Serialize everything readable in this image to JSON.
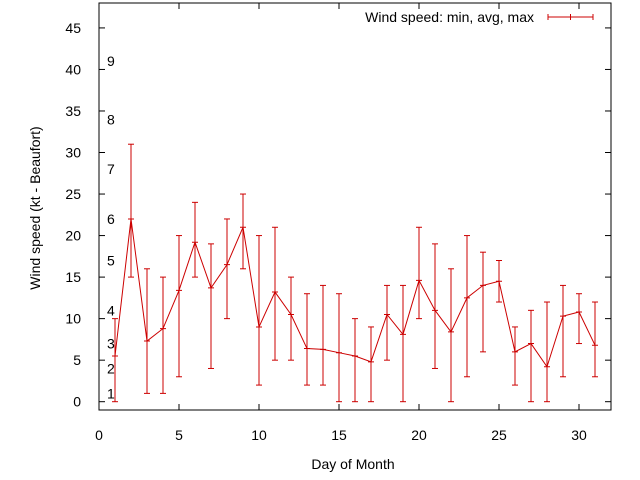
{
  "chart_data": {
    "type": "line",
    "title": "",
    "xlabel": "Day of Month",
    "ylabel": "Wind speed (kt - Beaufort)",
    "xlim": [
      0,
      32
    ],
    "ylim": [
      -1,
      48
    ],
    "xticks": [
      0,
      5,
      10,
      15,
      20,
      25,
      30
    ],
    "yticks": [
      0,
      5,
      10,
      15,
      20,
      25,
      30,
      35,
      40,
      45
    ],
    "grid": false,
    "legend": "top-right",
    "beaufort_labels": [
      {
        "label": "1",
        "y": 1.0
      },
      {
        "label": "2",
        "y": 4.0
      },
      {
        "label": "3",
        "y": 7.0
      },
      {
        "label": "4",
        "y": 11.0
      },
      {
        "label": "5",
        "y": 17.0
      },
      {
        "label": "6",
        "y": 22.0
      },
      {
        "label": "7",
        "y": 28.0
      },
      {
        "label": "8",
        "y": 34.0
      },
      {
        "label": "9",
        "y": 41.0
      }
    ],
    "series": [
      {
        "name": "Wind speed: min, avg, max",
        "color": "#cc0000",
        "x": [
          1,
          2,
          3,
          4,
          5,
          6,
          7,
          8,
          9,
          10,
          11,
          12,
          13,
          14,
          15,
          16,
          17,
          18,
          19,
          20,
          21,
          22,
          23,
          24,
          25,
          26,
          27,
          28,
          29,
          30,
          31
        ],
        "avg": [
          5.5,
          22,
          7.3,
          8.8,
          13.4,
          19.2,
          13.7,
          16.5,
          21,
          9,
          13.2,
          10.5,
          6.4,
          6.3,
          5.9,
          5.5,
          4.8,
          10.5,
          8.1,
          14.6,
          11,
          8.4,
          12.5,
          14,
          14.5,
          6,
          7,
          4.2,
          10.3,
          10.8,
          6.8
        ],
        "min": [
          0,
          15,
          1,
          1,
          3,
          15,
          4,
          10,
          16,
          2,
          5,
          5,
          2,
          2,
          0,
          0,
          0,
          5,
          0,
          10,
          4,
          0,
          3,
          6,
          12,
          2,
          0,
          0,
          3,
          7,
          3
        ],
        "max": [
          10,
          31,
          16,
          15,
          20,
          24,
          19,
          22,
          25,
          20,
          21,
          15,
          13,
          14,
          13,
          10,
          9,
          14,
          14,
          21,
          19,
          16,
          20,
          18,
          17,
          9,
          11,
          12,
          14,
          13,
          12
        ]
      }
    ]
  }
}
